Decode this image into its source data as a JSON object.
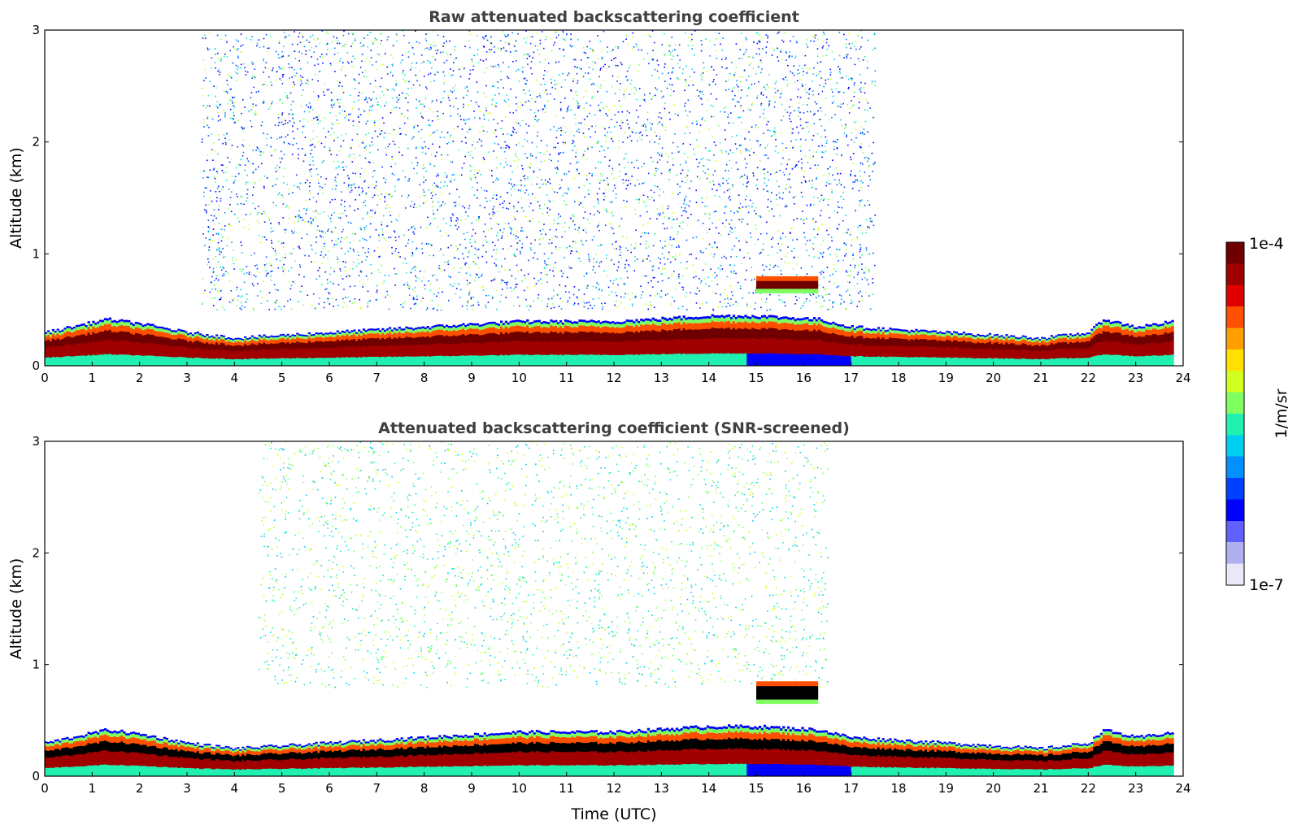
{
  "chart_data": [
    {
      "type": "heatmap",
      "title": "Raw attenuated backscattering coefficient",
      "xlabel": "",
      "ylabel": "Altitude (km)",
      "xlim": [
        0,
        24
      ],
      "ylim": [
        0,
        3
      ],
      "xticks": [
        "0",
        "1",
        "2",
        "3",
        "4",
        "5",
        "6",
        "7",
        "8",
        "9",
        "10",
        "11",
        "12",
        "13",
        "14",
        "15",
        "16",
        "17",
        "18",
        "19",
        "20",
        "21",
        "22",
        "23",
        "24"
      ],
      "yticks": [
        "0",
        "1",
        "2",
        "3"
      ],
      "features": {
        "boundary_layer_height_km": [
          [
            0,
            0.3
          ],
          [
            1.3,
            0.42
          ],
          [
            2,
            0.38
          ],
          [
            3,
            0.3
          ],
          [
            4,
            0.25
          ],
          [
            6,
            0.3
          ],
          [
            8,
            0.35
          ],
          [
            10,
            0.4
          ],
          [
            12,
            0.4
          ],
          [
            14,
            0.45
          ],
          [
            15,
            0.45
          ],
          [
            16.3,
            0.42
          ],
          [
            17,
            0.35
          ],
          [
            19,
            0.3
          ],
          [
            21,
            0.25
          ],
          [
            22,
            0.3
          ],
          [
            22.3,
            0.42
          ],
          [
            23,
            0.35
          ],
          [
            23.8,
            0.4
          ]
        ],
        "cloud_layer": {
          "x_start": 15.0,
          "x_end": 16.3,
          "y_bottom_km": 0.65,
          "y_top_km": 0.8
        },
        "noise_region": {
          "x_start": 3.3,
          "x_end": 17.5,
          "y_bottom_km": 0.5,
          "y_top_km": 3
        }
      }
    },
    {
      "type": "heatmap",
      "title": "Attenuated backscattering coefficient (SNR-screened)",
      "xlabel": "Time (UTC)",
      "ylabel": "Altitude (km)",
      "xlim": [
        0,
        24
      ],
      "ylim": [
        0,
        3
      ],
      "xticks": [
        "0",
        "1",
        "2",
        "3",
        "4",
        "5",
        "6",
        "7",
        "8",
        "9",
        "10",
        "11",
        "12",
        "13",
        "14",
        "15",
        "16",
        "17",
        "18",
        "19",
        "20",
        "21",
        "22",
        "23",
        "24"
      ],
      "yticks": [
        "0",
        "1",
        "2",
        "3"
      ],
      "features": {
        "boundary_layer_height_km": [
          [
            0,
            0.3
          ],
          [
            1.3,
            0.42
          ],
          [
            2,
            0.38
          ],
          [
            3,
            0.3
          ],
          [
            4,
            0.25
          ],
          [
            6,
            0.3
          ],
          [
            8,
            0.35
          ],
          [
            10,
            0.4
          ],
          [
            12,
            0.4
          ],
          [
            14,
            0.45
          ],
          [
            15,
            0.45
          ],
          [
            16.3,
            0.42
          ],
          [
            17,
            0.35
          ],
          [
            19,
            0.3
          ],
          [
            21,
            0.25
          ],
          [
            22,
            0.3
          ],
          [
            22.3,
            0.42
          ],
          [
            23,
            0.35
          ],
          [
            23.8,
            0.4
          ]
        ],
        "cloud_layer": {
          "x_start": 15.0,
          "x_end": 16.3,
          "y_bottom_km": 0.65,
          "y_top_km": 0.85
        },
        "noise_region": {
          "x_start": 4.5,
          "x_end": 16.5,
          "y_bottom_km": 0.8,
          "y_top_km": 3
        }
      }
    }
  ],
  "colorbar": {
    "max_label": "1e-4",
    "min_label": "1e-7",
    "unit_label": "1/m/sr",
    "colormap": [
      "#e8e8f8",
      "#b0b0f0",
      "#6060ff",
      "#0000ff",
      "#0040ff",
      "#0090ff",
      "#00d0f0",
      "#20f0b0",
      "#80ff60",
      "#d0ff20",
      "#ffe000",
      "#ffa000",
      "#ff5000",
      "#e00000",
      "#a00000",
      "#700000"
    ]
  }
}
